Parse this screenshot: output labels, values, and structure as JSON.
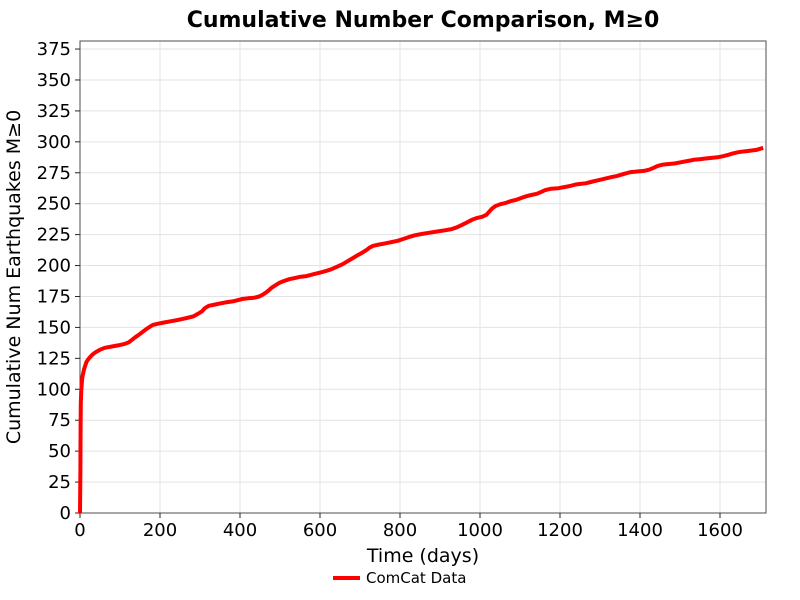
{
  "chart_data": {
    "type": "line",
    "title": "Cumulative Number Comparison, M≥0",
    "xlabel": "Time (days)",
    "ylabel": "Cumulative Num Earthquakes M≥0",
    "xlim": [
      0,
      1715
    ],
    "ylim": [
      0,
      381.5
    ],
    "x_ticks": [
      0,
      200,
      400,
      600,
      800,
      1000,
      1200,
      1400,
      1600
    ],
    "y_ticks": [
      0,
      25,
      50,
      75,
      100,
      125,
      150,
      175,
      200,
      225,
      250,
      275,
      300,
      325,
      350,
      375
    ],
    "grid": true,
    "background": "#ffffff",
    "grid_color": "#e3e3e3",
    "spine_color": "#4d4d4d",
    "tick_color": "#262626",
    "legend": {
      "position": "bottom-center",
      "entries": [
        {
          "label": "ComCat Data",
          "color": "#ff0000"
        }
      ]
    },
    "series": [
      {
        "name": "ComCat Data",
        "color": "#ff0000",
        "line_width": 4,
        "points": [
          [
            0,
            0
          ],
          [
            1,
            35
          ],
          [
            1.5,
            70
          ],
          [
            2,
            88
          ],
          [
            3,
            98
          ],
          [
            4,
            103
          ],
          [
            5,
            107
          ],
          [
            6,
            110
          ],
          [
            8,
            113
          ],
          [
            10,
            116
          ],
          [
            13,
            119
          ],
          [
            16,
            122
          ],
          [
            20,
            124
          ],
          [
            25,
            126
          ],
          [
            31,
            128
          ],
          [
            39,
            130
          ],
          [
            50,
            132
          ],
          [
            62,
            133.5
          ],
          [
            78,
            134.5
          ],
          [
            95,
            135.5
          ],
          [
            110,
            136.5
          ],
          [
            122,
            138
          ],
          [
            130,
            140
          ],
          [
            138,
            142
          ],
          [
            147,
            144
          ],
          [
            155,
            146
          ],
          [
            163,
            148
          ],
          [
            172,
            150
          ],
          [
            182,
            152
          ],
          [
            195,
            153
          ],
          [
            210,
            154
          ],
          [
            228,
            155
          ],
          [
            244,
            156
          ],
          [
            258,
            157
          ],
          [
            272,
            158
          ],
          [
            284,
            159
          ],
          [
            295,
            161
          ],
          [
            305,
            163
          ],
          [
            312,
            165.5
          ],
          [
            322,
            167.5
          ],
          [
            338,
            168.5
          ],
          [
            352,
            169.5
          ],
          [
            368,
            170.5
          ],
          [
            382,
            171
          ],
          [
            394,
            172
          ],
          [
            406,
            173
          ],
          [
            420,
            173.5
          ],
          [
            436,
            174
          ],
          [
            448,
            175
          ],
          [
            457,
            176.5
          ],
          [
            464,
            178
          ],
          [
            472,
            180
          ],
          [
            479,
            182
          ],
          [
            488,
            184
          ],
          [
            498,
            186
          ],
          [
            510,
            187.5
          ],
          [
            523,
            189
          ],
          [
            538,
            190
          ],
          [
            552,
            191
          ],
          [
            566,
            191.5
          ],
          [
            578,
            192.5
          ],
          [
            590,
            193.5
          ],
          [
            602,
            194.5
          ],
          [
            614,
            195.5
          ],
          [
            628,
            197
          ],
          [
            642,
            199
          ],
          [
            656,
            201
          ],
          [
            669,
            203.5
          ],
          [
            682,
            206
          ],
          [
            695,
            208.5
          ],
          [
            706,
            210.5
          ],
          [
            716,
            212.5
          ],
          [
            724,
            214.5
          ],
          [
            733,
            216
          ],
          [
            748,
            217
          ],
          [
            764,
            218
          ],
          [
            780,
            219
          ],
          [
            794,
            220
          ],
          [
            808,
            221.5
          ],
          [
            822,
            223
          ],
          [
            838,
            224.5
          ],
          [
            854,
            225.5
          ],
          [
            872,
            226.5
          ],
          [
            893,
            227.5
          ],
          [
            912,
            228.5
          ],
          [
            929,
            229.5
          ],
          [
            943,
            231
          ],
          [
            956,
            233
          ],
          [
            968,
            235
          ],
          [
            980,
            237
          ],
          [
            993,
            238.5
          ],
          [
            1006,
            239.5
          ],
          [
            1016,
            241
          ],
          [
            1023,
            243.5
          ],
          [
            1030,
            246
          ],
          [
            1038,
            248
          ],
          [
            1050,
            249.5
          ],
          [
            1063,
            250.5
          ],
          [
            1076,
            252
          ],
          [
            1089,
            253
          ],
          [
            1102,
            254.5
          ],
          [
            1115,
            256
          ],
          [
            1128,
            257
          ],
          [
            1142,
            258
          ],
          [
            1153,
            259.5
          ],
          [
            1163,
            261
          ],
          [
            1177,
            262
          ],
          [
            1196,
            262.5
          ],
          [
            1212,
            263.5
          ],
          [
            1227,
            264.5
          ],
          [
            1239,
            265.5
          ],
          [
            1251,
            266
          ],
          [
            1264,
            266.5
          ],
          [
            1277,
            267.5
          ],
          [
            1289,
            268.5
          ],
          [
            1303,
            269.5
          ],
          [
            1316,
            270.5
          ],
          [
            1329,
            271.5
          ],
          [
            1343,
            272.5
          ],
          [
            1354,
            273.5
          ],
          [
            1364,
            274.5
          ],
          [
            1377,
            275.5
          ],
          [
            1393,
            276
          ],
          [
            1409,
            276.5
          ],
          [
            1423,
            277.5
          ],
          [
            1434,
            279
          ],
          [
            1444,
            280.5
          ],
          [
            1456,
            281.5
          ],
          [
            1469,
            282
          ],
          [
            1486,
            282.5
          ],
          [
            1503,
            283.5
          ],
          [
            1519,
            284.5
          ],
          [
            1534,
            285.5
          ],
          [
            1549,
            286
          ],
          [
            1564,
            286.5
          ],
          [
            1579,
            287
          ],
          [
            1594,
            287.5
          ],
          [
            1609,
            288.5
          ],
          [
            1621,
            289.5
          ],
          [
            1631,
            290.5
          ],
          [
            1644,
            291.5
          ],
          [
            1654,
            292
          ],
          [
            1667,
            292.5
          ],
          [
            1679,
            293
          ],
          [
            1691,
            293.5
          ],
          [
            1702,
            294.5
          ],
          [
            1708,
            295
          ]
        ]
      }
    ]
  }
}
